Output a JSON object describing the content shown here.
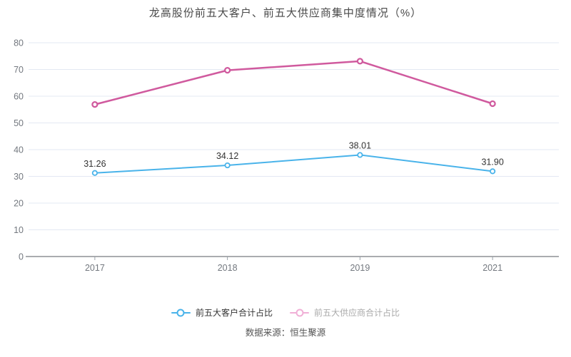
{
  "title": "龙高股份前五大客户、前五大供应商集中度情况（%）",
  "source": "数据来源：恒生聚源",
  "legend": [
    {
      "label": "前五大客户合计占比",
      "marker_color": "#49b3ea",
      "text_color": "#333333"
    },
    {
      "label": "前五大供应商合计占比",
      "marker_color": "#f0afd6",
      "text_color": "#aaaaaa"
    }
  ],
  "chart_data": {
    "type": "line",
    "categories": [
      "2017",
      "2018",
      "2019",
      "2021"
    ],
    "series": [
      {
        "name": "前五大客户合计占比",
        "values": [
          31.26,
          34.12,
          38.01,
          31.9
        ],
        "color": "#49b3ea",
        "line_width": 2,
        "labels_visible": true
      },
      {
        "name": "前五大供应商合计占比",
        "values": [
          56.9,
          69.7,
          73.1,
          57.2
        ],
        "color": "#d05a9e",
        "line_width": 2.5,
        "labels_visible": false
      }
    ],
    "title": "龙高股份前五大客户、前五大供应商集中度情况（%）",
    "xlabel": "",
    "ylabel": "",
    "ylim": [
      0,
      80
    ],
    "ytick_step": 10,
    "grid": true,
    "legend_position": "bottom"
  }
}
